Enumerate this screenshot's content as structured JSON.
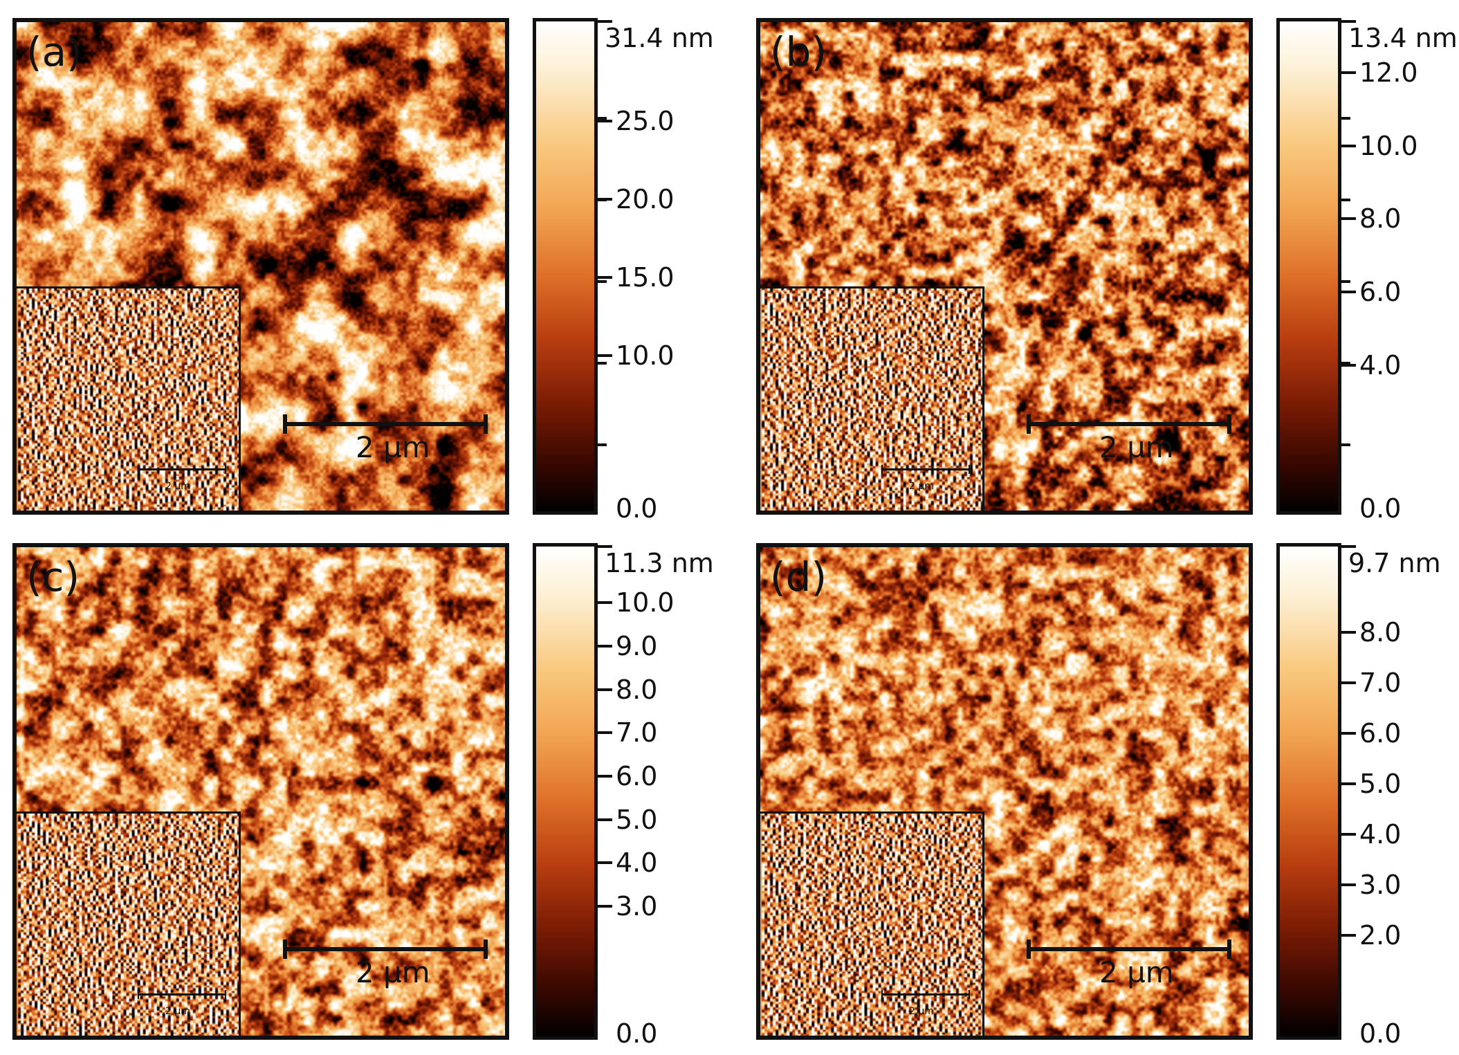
{
  "panels": [
    {
      "label": "(a)",
      "scale_bar": "2 µm",
      "inset_scale_bar": "2 µm",
      "colorbar": {
        "max_label": "31.4 nm",
        "max": 31.4,
        "ticks": [
          "25.0",
          "20.0",
          "15.0",
          "10.0",
          "0.0"
        ],
        "tick_values": [
          25,
          20,
          15,
          10,
          0
        ]
      },
      "texture": {
        "seed": 11,
        "grain": 22,
        "base": 0.52,
        "contrast": 1.15,
        "dark_spots": 14
      }
    },
    {
      "label": "(b)",
      "scale_bar": "2 µm",
      "inset_scale_bar": "2 µm",
      "colorbar": {
        "max_label": "13.4 nm",
        "max": 13.4,
        "ticks": [
          "12.0",
          "10.0",
          "8.0",
          "6.0",
          "4.0",
          "0.0"
        ],
        "tick_values": [
          12,
          10,
          8,
          6,
          4,
          0
        ]
      },
      "texture": {
        "seed": 27,
        "grain": 9,
        "base": 0.5,
        "contrast": 1.05,
        "dark_spots": 16
      }
    },
    {
      "label": "(c)",
      "scale_bar": "2 µm",
      "inset_scale_bar": "2 µm",
      "colorbar": {
        "max_label": "11.3 nm",
        "max": 11.3,
        "ticks": [
          "10.0",
          "9.0",
          "8.0",
          "7.0",
          "6.0",
          "5.0",
          "4.0",
          "3.0",
          "0.0"
        ],
        "tick_values": [
          10,
          9,
          8,
          7,
          6,
          5,
          4,
          3,
          0
        ]
      },
      "texture": {
        "seed": 43,
        "grain": 10,
        "base": 0.56,
        "contrast": 0.95,
        "dark_spots": 5
      }
    },
    {
      "label": "(d)",
      "scale_bar": "2 µm",
      "inset_scale_bar": "2 µm",
      "colorbar": {
        "max_label": "9.7 nm",
        "max": 9.7,
        "ticks": [
          "8.0",
          "7.0",
          "6.0",
          "5.0",
          "4.0",
          "3.0",
          "2.0",
          "0.0"
        ],
        "tick_values": [
          8,
          7,
          6,
          5,
          4,
          3,
          2,
          0
        ]
      },
      "texture": {
        "seed": 59,
        "grain": 9,
        "base": 0.55,
        "contrast": 0.92,
        "dark_spots": 7
      }
    }
  ],
  "colors": {
    "frame": "#111111",
    "background": "#ffffff"
  }
}
